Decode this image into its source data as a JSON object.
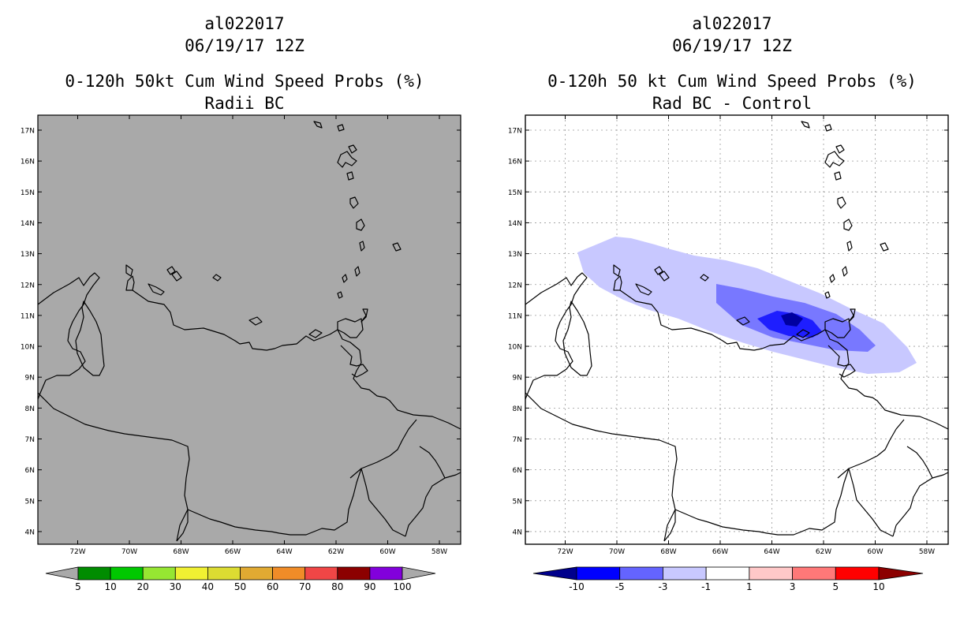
{
  "left_panel": {
    "storm_id": "al022017",
    "datetime": "06/19/17 12Z",
    "product": "0-120h 50kt Cum Wind Speed Probs (%)",
    "subtitle": "Radii BC",
    "lat_labels": [
      "17N",
      "16N",
      "15N",
      "14N",
      "13N",
      "12N",
      "11N",
      "10N",
      "9N",
      "8N",
      "7N",
      "6N",
      "5N",
      "4N"
    ],
    "lon_labels": [
      "72W",
      "70W",
      "68W",
      "66W",
      "64W",
      "62W",
      "60W",
      "58W"
    ],
    "background_color": "#a9a9a9",
    "colorbar": {
      "labels": [
        "5",
        "10",
        "20",
        "30",
        "40",
        "50",
        "60",
        "70",
        "80",
        "90",
        "100"
      ],
      "colors": [
        "#008c00",
        "#00c800",
        "#96e632",
        "#f0f032",
        "#dcdc32",
        "#e1aa32",
        "#f08c28",
        "#f04646",
        "#8c0000",
        "#8200dc"
      ],
      "end_color": "#a9a9a9"
    }
  },
  "right_panel": {
    "storm_id": "al022017",
    "datetime": "06/19/17 12Z",
    "product": "0-120h 50 kt Cum Wind Speed Probs (%)",
    "subtitle": "Rad BC - Control",
    "lat_labels": [
      "17N",
      "16N",
      "15N",
      "14N",
      "13N",
      "12N",
      "11N",
      "10N",
      "9N",
      "8N",
      "7N",
      "6N",
      "5N",
      "4N"
    ],
    "lon_labels": [
      "72W",
      "70W",
      "68W",
      "66W",
      "64W",
      "62W",
      "60W",
      "58W"
    ],
    "background_color": "#ffffff",
    "difference_shading": [
      {
        "range": "-3 to -1",
        "color": "#c8c8ff"
      },
      {
        "range": "-5 to -3",
        "color": "#7878ff"
      },
      {
        "range": "-10 to -5",
        "color": "#1e1eff"
      },
      {
        "range": "< -10",
        "color": "#0000a0"
      }
    ],
    "colorbar": {
      "labels": [
        "-10",
        "-5",
        "-3",
        "-1",
        "1",
        "3",
        "5",
        "10"
      ],
      "colors": [
        "#0000ff",
        "#6464ff",
        "#c8c8ff",
        "#ffffff",
        "#ffc8c8",
        "#ff7878",
        "#ff0000"
      ],
      "left_end_color": "#00008c",
      "right_end_color": "#8c0000"
    }
  }
}
